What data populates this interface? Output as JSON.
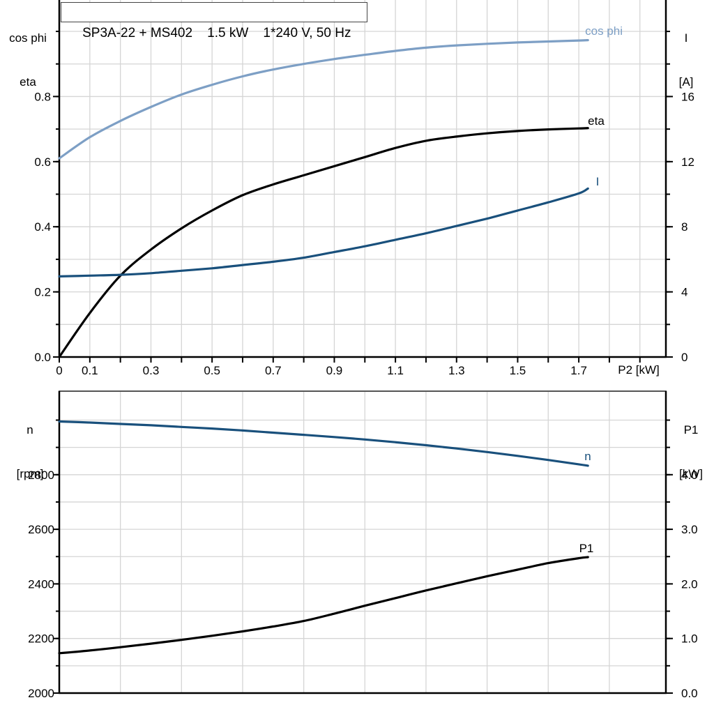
{
  "title": "SP3A-22 + MS402    1.5 kW    1*240 V, 50 Hz",
  "axis_corner_labels": {
    "top_left_line1": "cos phi",
    "top_left_line2": "eta",
    "top_right_line1": "I",
    "top_right_line2": "[A]",
    "bottom_left_line1": "n",
    "bottom_left_line2": "[rpm]",
    "bottom_right_line1": "P1",
    "bottom_right_line2": "[kW]",
    "x_axis_label": "P2 [kW]"
  },
  "colors": {
    "cos_phi_curve": "#7d9fc5",
    "dark_blue_curve": "#19507c",
    "black_curve": "#000000",
    "grid": "#d5d5d5",
    "axis": "#000000",
    "bottom_chart_top_border": "#555555"
  },
  "chart_data": [
    {
      "type": "line",
      "title": "SP3A-22 + MS402  1.5 kW  1*240 V, 50 Hz",
      "xlabel": "P2 [kW]",
      "ylabel_left": "cos phi, eta",
      "ylabel_right": "I [A]",
      "xlim": [
        0,
        1.985
      ],
      "ylim_left": [
        0,
        1.0964
      ],
      "ylim_right": [
        0,
        21.93
      ],
      "grid": true,
      "x_ticks": {
        "values": [
          0,
          0.1,
          0.3,
          0.5,
          0.7,
          0.9,
          1.1,
          1.3,
          1.5,
          1.7
        ],
        "labels": [
          "0",
          "0.1",
          "0.3",
          "0.5",
          "0.7",
          "0.9",
          "1.1",
          "1.3",
          "1.5",
          "1.7"
        ],
        "minor_step": 0.1
      },
      "y_ticks_left": {
        "values": [
          0,
          0.2,
          0.4,
          0.6,
          0.8
        ],
        "labels": [
          "0.0",
          "0.2",
          "0.4",
          "0.6",
          "0.8"
        ],
        "minor_step": 0.1
      },
      "y_ticks_right": {
        "values": [
          0,
          4,
          8,
          12,
          16
        ],
        "labels": [
          "0",
          "4",
          "8",
          "12",
          "16"
        ],
        "minor_step": 2
      },
      "x": [
        0,
        0.1,
        0.2,
        0.3,
        0.4,
        0.5,
        0.6,
        0.7,
        0.8,
        0.9,
        1.0,
        1.1,
        1.2,
        1.3,
        1.4,
        1.5,
        1.6,
        1.7,
        1.73
      ],
      "series": [
        {
          "name": "cos phi",
          "axis": "left",
          "color": "#7d9fc5",
          "values": [
            0.61,
            0.675,
            0.725,
            0.768,
            0.806,
            0.836,
            0.862,
            0.883,
            0.9,
            0.915,
            0.928,
            0.94,
            0.95,
            0.957,
            0.962,
            0.966,
            0.969,
            0.972,
            0.973
          ]
        },
        {
          "name": "eta",
          "axis": "left",
          "color": "#000000",
          "values": [
            0.0,
            0.135,
            0.25,
            0.33,
            0.395,
            0.45,
            0.497,
            0.53,
            0.558,
            0.586,
            0.614,
            0.642,
            0.664,
            0.677,
            0.687,
            0.694,
            0.699,
            0.702,
            0.703
          ]
        },
        {
          "name": "I",
          "axis": "right",
          "color": "#19507c",
          "values": [
            4.95,
            5.0,
            5.05,
            5.15,
            5.3,
            5.45,
            5.65,
            5.85,
            6.1,
            6.45,
            6.8,
            7.2,
            7.6,
            8.05,
            8.5,
            9.0,
            9.5,
            10.05,
            10.35
          ]
        }
      ]
    },
    {
      "type": "line",
      "title": "",
      "xlabel": "",
      "ylabel_left": "n [rpm]",
      "ylabel_right": "P1 [kW]",
      "xlim": [
        0,
        1.985
      ],
      "ylim_left": [
        2000,
        3106
      ],
      "ylim_right": [
        0,
        5.53
      ],
      "grid": true,
      "x_ticks": {
        "values": [],
        "labels": [],
        "minor_step": 0.2
      },
      "y_ticks_left": {
        "values": [
          2000,
          2200,
          2400,
          2600,
          2800
        ],
        "labels": [
          "2000",
          "2200",
          "2400",
          "2600",
          "2800"
        ],
        "minor_step": 100
      },
      "y_ticks_right": {
        "values": [
          0,
          1,
          2,
          3,
          4
        ],
        "labels": [
          "0.0",
          "1.0",
          "2.0",
          "3.0",
          "4.0"
        ],
        "minor_step": 0.5
      },
      "x": [
        0,
        0.1,
        0.2,
        0.3,
        0.4,
        0.5,
        0.6,
        0.7,
        0.8,
        0.9,
        1.0,
        1.1,
        1.2,
        1.3,
        1.4,
        1.5,
        1.6,
        1.7,
        1.73
      ],
      "series": [
        {
          "name": "n",
          "axis": "left",
          "color": "#19507c",
          "values": [
            2995,
            2991,
            2986,
            2981,
            2975,
            2969,
            2962,
            2954,
            2946,
            2938,
            2929,
            2919,
            2908,
            2896,
            2883,
            2869,
            2854,
            2838,
            2833
          ]
        },
        {
          "name": "P1",
          "axis": "right",
          "color": "#000000",
          "values": [
            0.73,
            0.78,
            0.84,
            0.905,
            0.975,
            1.05,
            1.13,
            1.22,
            1.32,
            1.455,
            1.6,
            1.74,
            1.88,
            2.01,
            2.14,
            2.26,
            2.38,
            2.47,
            2.49
          ]
        }
      ]
    }
  ]
}
